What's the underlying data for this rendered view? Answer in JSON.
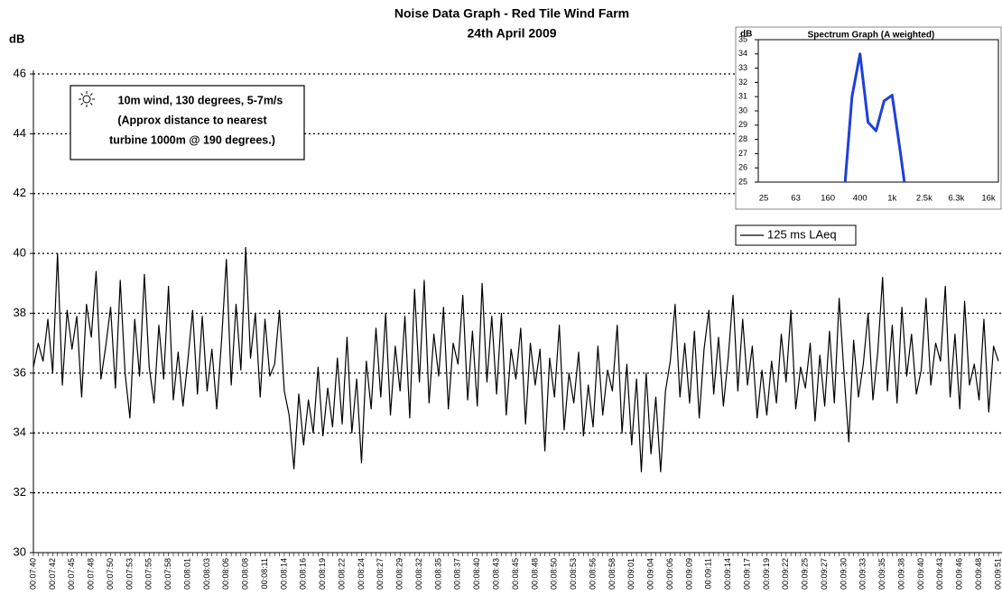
{
  "chart_data": [
    {
      "type": "line",
      "title": "Noise Data Graph - Red Tile Wind Farm",
      "subtitle": "24th April 2009",
      "y_label": "dB",
      "annotation": [
        "10m wind, 130 degrees, 5-7m/s",
        "(Approx distance to nearest",
        "turbine 1000m @ 190 degrees.)"
      ],
      "categories": [
        "00:07:40",
        null,
        null,
        null,
        "00:07:42",
        null,
        null,
        null,
        "00:07:45",
        null,
        null,
        null,
        "00:07:48",
        null,
        null,
        null,
        "00:07:50",
        null,
        null,
        null,
        "00:07:53",
        null,
        null,
        null,
        "00:07:55",
        null,
        null,
        null,
        "00:07:58",
        null,
        null,
        null,
        "00:08:01",
        null,
        null,
        null,
        "00:08:03",
        null,
        null,
        null,
        "00:08:06",
        null,
        null,
        null,
        "00:08:08",
        null,
        null,
        null,
        "00:08:11",
        null,
        null,
        null,
        "00:08:14",
        null,
        null,
        null,
        "00:08:16",
        null,
        null,
        null,
        "00:08:19",
        null,
        null,
        null,
        "00:08:22",
        null,
        null,
        null,
        "00:08:24",
        null,
        null,
        null,
        "00:08:27",
        null,
        null,
        null,
        "00:08:29",
        null,
        null,
        null,
        "00:08:32",
        null,
        null,
        null,
        "00:08:35",
        null,
        null,
        null,
        "00:08:37",
        null,
        null,
        null,
        "00:08:40",
        null,
        null,
        null,
        "00:08:43",
        null,
        null,
        null,
        "00:08:45",
        null,
        null,
        null,
        "00:08:48",
        null,
        null,
        null,
        "00:08:50",
        null,
        null,
        null,
        "00:08:53",
        null,
        null,
        null,
        "00:08:56",
        null,
        null,
        null,
        "00:08:58",
        null,
        null,
        null,
        "00:09:01",
        null,
        null,
        null,
        "00:09:04",
        null,
        null,
        null,
        "00:09:06",
        null,
        null,
        null,
        "00:09:09",
        null,
        null,
        null,
        "00:09:11",
        null,
        null,
        null,
        "00:09:14",
        null,
        null,
        null,
        "00:09:17",
        null,
        null,
        null,
        "00:09:19",
        null,
        null,
        null,
        "00:09:22",
        null,
        null,
        null,
        "00:09:25",
        null,
        null,
        null,
        "00:09:27",
        null,
        null,
        null,
        "00:09:30",
        null,
        null,
        null,
        "00:09:33",
        null,
        null,
        null,
        "00:09:35",
        null,
        null,
        null,
        "00:09:38",
        null,
        null,
        null,
        "00:09:40",
        null,
        null,
        null,
        "00:09:43",
        null,
        null,
        null,
        "00:09:46",
        null,
        null,
        null,
        "00:09:48",
        null,
        null,
        null,
        "00:09:51"
      ],
      "series": [
        {
          "name": "125 ms LAeq",
          "color": "#000000",
          "values": [
            36.2,
            37.0,
            36.4,
            37.8,
            36.0,
            40.0,
            35.6,
            38.1,
            36.8,
            37.9,
            35.2,
            38.3,
            37.2,
            39.4,
            35.8,
            36.9,
            38.2,
            35.5,
            39.1,
            36.0,
            34.5,
            37.8,
            35.9,
            39.3,
            36.2,
            35.0,
            37.6,
            35.8,
            38.9,
            35.1,
            36.7,
            34.9,
            36.4,
            38.1,
            35.3,
            37.9,
            35.4,
            36.8,
            34.8,
            37.1,
            39.8,
            35.6,
            38.3,
            36.1,
            40.2,
            36.5,
            38.0,
            35.2,
            37.8,
            35.9,
            36.3,
            38.1,
            35.4,
            34.6,
            32.8,
            35.3,
            33.6,
            35.1,
            34.0,
            36.2,
            33.9,
            35.5,
            34.2,
            36.5,
            34.3,
            37.2,
            34.0,
            35.8,
            33.0,
            36.4,
            34.8,
            37.5,
            35.2,
            38.0,
            34.6,
            36.9,
            35.4,
            37.9,
            34.5,
            38.8,
            35.7,
            39.1,
            35.0,
            37.3,
            35.9,
            38.2,
            34.8,
            37.0,
            36.3,
            38.6,
            35.1,
            37.4,
            34.9,
            39.0,
            35.7,
            37.9,
            35.3,
            38.0,
            34.6,
            36.8,
            35.8,
            37.5,
            34.3,
            37.0,
            35.6,
            36.8,
            33.4,
            36.5,
            35.2,
            37.6,
            34.1,
            36.0,
            35.0,
            36.7,
            33.9,
            35.6,
            34.2,
            36.9,
            34.6,
            36.1,
            35.4,
            37.6,
            34.0,
            36.3,
            33.6,
            35.8,
            32.7,
            36.0,
            33.3,
            35.2,
            32.7,
            35.4,
            36.4,
            38.3,
            35.2,
            37.0,
            35.0,
            37.4,
            34.5,
            36.8,
            38.1,
            35.3,
            37.2,
            34.9,
            36.5,
            38.6,
            35.4,
            37.8,
            35.6,
            36.9,
            34.5,
            36.1,
            34.6,
            36.4,
            35.0,
            37.3,
            35.7,
            38.1,
            34.8,
            36.2,
            35.5,
            37.0,
            34.4,
            36.6,
            34.9,
            37.4,
            35.0,
            38.5,
            36.0,
            33.7,
            37.1,
            35.2,
            36.3,
            38.0,
            35.1,
            36.7,
            39.2,
            35.4,
            37.6,
            35.0,
            38.2,
            35.9,
            37.3,
            35.3,
            36.1,
            38.5,
            35.6,
            37.0,
            36.4,
            38.9,
            35.2,
            37.3,
            34.8,
            38.4,
            35.6,
            36.3,
            35.1,
            37.8,
            34.7,
            36.9,
            36.4
          ]
        }
      ],
      "ylim": [
        30,
        46
      ],
      "yticks": [
        30,
        32,
        34,
        36,
        38,
        40,
        42,
        44,
        46
      ],
      "grid": true,
      "legend": "right"
    },
    {
      "type": "line",
      "title": "Spectrum Graph (A weighted)",
      "y_label": "dB",
      "categories": [
        "25",
        null,
        null,
        null,
        "63",
        null,
        null,
        null,
        "160",
        null,
        null,
        null,
        "400",
        null,
        null,
        null,
        "1k",
        null,
        null,
        null,
        "2.5k",
        null,
        null,
        null,
        "6.3k",
        null,
        null,
        null,
        "16k"
      ],
      "series": [
        {
          "color": "#1f3fdc",
          "values": [
            null,
            null,
            null,
            null,
            null,
            null,
            null,
            null,
            null,
            null,
            24,
            31,
            34,
            29.2,
            28.6,
            30.7,
            31.1,
            27.2,
            23,
            null,
            null,
            null,
            null,
            null,
            null,
            null,
            null,
            null,
            null
          ]
        }
      ],
      "ylim": [
        25,
        35
      ],
      "yticks": [
        25,
        26,
        27,
        28,
        29,
        30,
        31,
        32,
        33,
        34,
        35
      ],
      "grid": false
    }
  ]
}
